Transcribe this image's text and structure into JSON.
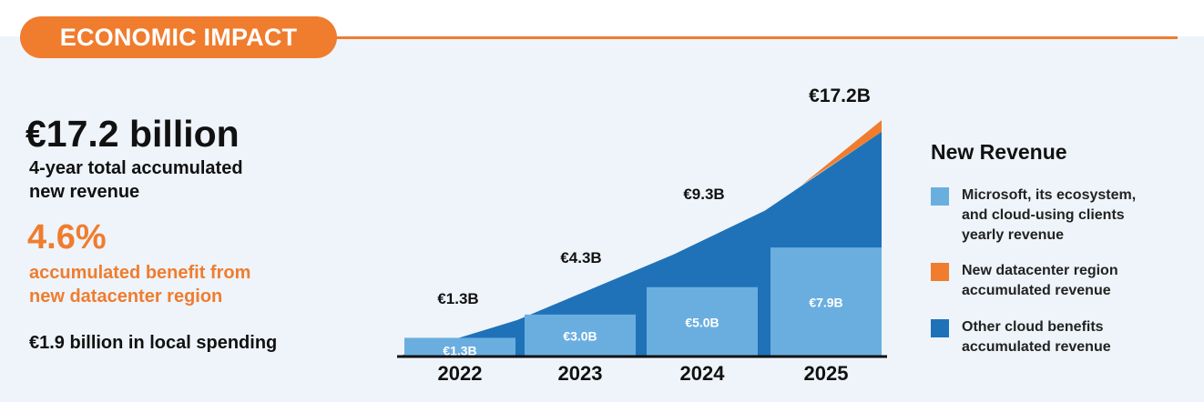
{
  "header": {
    "title": "ECONOMIC IMPACT"
  },
  "summary": {
    "total_value": "€17.2 billion",
    "total_caption_line1": "4-year total accumulated",
    "total_caption_line2": "new revenue",
    "pct_value": "4.6%",
    "pct_caption_line1": "accumulated benefit from",
    "pct_caption_line2": "new datacenter region",
    "spending": "€1.9 billion in local spending"
  },
  "legend": {
    "title": "New Revenue",
    "items": [
      {
        "line1": "Microsoft, its ecosystem,",
        "line2": "and cloud-using clients",
        "line3": "yearly revenue",
        "color": "#6aaee0"
      },
      {
        "line1": "New datacenter region",
        "line2": "accumulated revenue",
        "line3": "",
        "color": "#f07c2e"
      },
      {
        "line1": "Other cloud benefits",
        "line2": "accumulated revenue",
        "line3": "",
        "color": "#1f72b8"
      }
    ]
  },
  "chart_data": {
    "type": "area",
    "title": "",
    "categories": [
      "2022",
      "2023",
      "2024",
      "2025"
    ],
    "unit": "€ billion",
    "series": [
      {
        "name": "Microsoft, its ecosystem, and cloud-using clients yearly revenue",
        "kind": "bar",
        "values": [
          1.3,
          3.0,
          5.0,
          7.9
        ],
        "labels": [
          "€1.3B",
          "€3.0B",
          "€5.0B",
          "€7.9B"
        ],
        "color": "#6aaee0"
      },
      {
        "name": "Other cloud benefits accumulated revenue",
        "kind": "area",
        "color": "#1f72b8"
      },
      {
        "name": "New datacenter region accumulated revenue",
        "kind": "area",
        "color": "#f07c2e"
      }
    ],
    "totals": {
      "values": [
        1.3,
        4.3,
        9.3,
        17.2
      ],
      "labels": [
        "€1.3B",
        "€4.3B",
        "€9.3B",
        "€17.2B"
      ]
    },
    "ylim": [
      0,
      17.2
    ]
  }
}
